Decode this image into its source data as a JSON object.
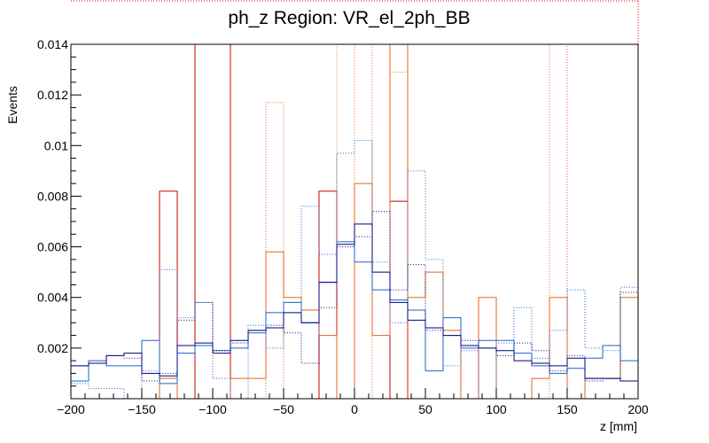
{
  "chart_data": {
    "type": "line",
    "title": "ph_z Region: VR_el_2ph_BB",
    "xlabel": "z [mm]",
    "ylabel": "Events",
    "xlim": [
      -200,
      200
    ],
    "ylim": [
      0,
      0.014
    ],
    "x_ticks": [
      "−200",
      "−150",
      "−100",
      "−50",
      "0",
      "50",
      "100",
      "150",
      "200"
    ],
    "y_ticks": [
      "0.002",
      "0.004",
      "0.006",
      "0.008",
      "0.01",
      "0.012",
      "0.014"
    ],
    "bin_edges": [
      -200,
      -187.5,
      -175,
      -162.5,
      -150,
      -137.5,
      -125,
      -112.5,
      -100,
      -87.5,
      -75,
      -62.5,
      -50,
      -37.5,
      -25,
      -12.5,
      0,
      12.5,
      25,
      37.5,
      50,
      62.5,
      75,
      87.5,
      100,
      112.5,
      125,
      137.5,
      150,
      162.5,
      175,
      187.5,
      200
    ],
    "grid": false,
    "series": [
      {
        "color": "#cc0000",
        "style": "solid",
        "values": [
          0,
          0,
          0,
          0,
          0,
          0.0082,
          0,
          0.015,
          0.015,
          0,
          0,
          0,
          0,
          0,
          0.0082,
          0,
          0,
          0,
          0.0078,
          0,
          0,
          0,
          0,
          0,
          0,
          0,
          0,
          0,
          0,
          0,
          0,
          0
        ]
      },
      {
        "color": "#e5661a",
        "style": "solid",
        "values": [
          0,
          0,
          0,
          0,
          0,
          0.0008,
          0,
          0,
          0,
          0.0008,
          0.0008,
          0.0058,
          0.004,
          0.0035,
          0.0025,
          0,
          0.0085,
          0.0025,
          0.015,
          0.004,
          0.005,
          0.0027,
          0,
          0.004,
          0,
          0,
          0.0008,
          0.004,
          0,
          0.0008,
          0.0008,
          0.004
        ]
      },
      {
        "color": "#e5661a",
        "style": "dotted",
        "values": [
          0,
          0,
          0,
          0,
          0,
          0,
          0,
          0,
          0,
          0,
          0,
          0.0117,
          0,
          0,
          0,
          0.015,
          0,
          0.015,
          0.0129,
          0,
          0,
          0,
          0,
          0,
          0,
          0,
          0,
          0.015,
          0,
          0,
          0,
          0
        ]
      },
      {
        "color": "#1a66cc",
        "style": "solid",
        "values": [
          0.0007,
          0.0015,
          0.0013,
          0.0013,
          0.0023,
          0.0006,
          0.0018,
          0.0021,
          0.0019,
          0.002,
          0.0026,
          0.0034,
          0.0038,
          0.003,
          0.0046,
          0.0062,
          0.0054,
          0.0043,
          0.0039,
          0.0035,
          0.0011,
          0.0032,
          0.002,
          0.0023,
          0.0023,
          0.0018,
          0.0013,
          0.001,
          0.0012,
          0.0016,
          0.0021,
          0.0015
        ]
      },
      {
        "color": "#1a66cc",
        "style": "dotted",
        "values": [
          0.0006,
          0.0004,
          0.0004,
          0,
          0.0011,
          0.0051,
          0.0032,
          0.0038,
          0.0008,
          0,
          0.0029,
          0.002,
          0.0038,
          0.0076,
          0.0057,
          0.0097,
          0.0102,
          0.0054,
          0.003,
          0.009,
          0.0055,
          0.0013,
          0.0019,
          0,
          0.0022,
          0.0036,
          0.0016,
          0.0027,
          0.0043,
          0.002,
          0.0019,
          0.0044
        ]
      },
      {
        "color": "#000080",
        "style": "solid",
        "values": [
          0.0013,
          0.0014,
          0.0017,
          0.0018,
          0.001,
          0.0009,
          0.0021,
          0.0022,
          0.0018,
          0.0023,
          0.0027,
          0.0028,
          0.0034,
          0.003,
          0.0046,
          0.0061,
          0.0069,
          0.005,
          0.0038,
          0.0031,
          0.0028,
          0.0025,
          0.0021,
          0.002,
          0.0019,
          0.0015,
          0.0014,
          0.0013,
          0.0016,
          0.0008,
          0.0008,
          0.0007
        ]
      },
      {
        "color": "#000080",
        "style": "dotted",
        "values": [
          0.0013,
          0.0014,
          0.0017,
          0.0016,
          0.0007,
          0.001,
          0.0031,
          0.0038,
          0.0019,
          0.0022,
          0.0027,
          0.0029,
          0.0026,
          0.0014,
          0.0036,
          0.006,
          0.0064,
          0.0074,
          0.0043,
          0.0053,
          0.0027,
          0.0025,
          0.0023,
          0.002,
          0.0017,
          0.0022,
          0.0019,
          0.0011,
          0.0017,
          0.0007,
          0.0008,
          0.0042
        ]
      }
    ]
  }
}
